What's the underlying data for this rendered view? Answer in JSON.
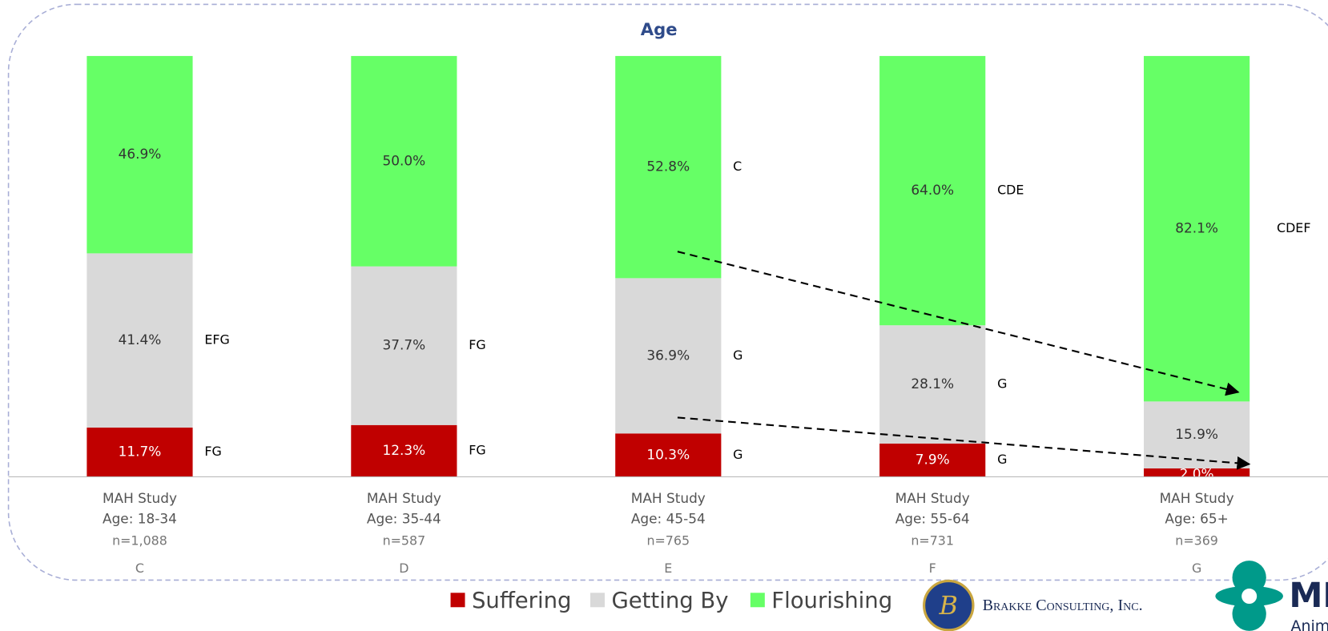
{
  "chart_data": {
    "type": "stacked_bar",
    "title": "Age",
    "categories": [
      {
        "study": "MAH Study",
        "age": "Age: 18-34",
        "n": "n=1,088",
        "letter": "C"
      },
      {
        "study": "MAH Study",
        "age": "Age: 35-44",
        "n": "n=587",
        "letter": "D"
      },
      {
        "study": "MAH Study",
        "age": "Age: 45-54",
        "n": "n=765",
        "letter": "E"
      },
      {
        "study": "MAH Study",
        "age": "Age: 55-64",
        "n": "n=731",
        "letter": "F"
      },
      {
        "study": "MAH Study",
        "age": "Age: 65+",
        "n": "n=369",
        "letter": "G"
      }
    ],
    "series": [
      {
        "name": "Suffering",
        "color": "#c00000",
        "values": [
          11.7,
          12.3,
          10.3,
          7.9,
          2.0
        ],
        "value_labels": [
          "11.7%",
          "12.3%",
          "10.3%",
          "7.9%",
          "2.0%"
        ],
        "significance": [
          "FG",
          "FG",
          "G",
          "G",
          null
        ]
      },
      {
        "name": "Getting By",
        "color": "#d9d9d9",
        "values": [
          41.4,
          37.7,
          36.9,
          28.1,
          15.9
        ],
        "value_labels": [
          "41.4%",
          "37.7%",
          "36.9%",
          "28.1%",
          "15.9%"
        ],
        "significance": [
          "EFG",
          "FG",
          "G",
          "G",
          null
        ]
      },
      {
        "name": "Flourishing",
        "color": "#66ff66",
        "values": [
          46.9,
          50.0,
          52.8,
          64.0,
          82.1
        ],
        "value_labels": [
          "46.9%",
          "50.0%",
          "52.8%",
          "64.0%",
          "82.1%"
        ],
        "significance": [
          null,
          null,
          "C",
          "CDE",
          "CDEF"
        ]
      }
    ]
  },
  "logos": {
    "brakke": "Brakke Consulting, Inc.",
    "merck": "MERCK",
    "merck_sub": "Animal Health"
  }
}
